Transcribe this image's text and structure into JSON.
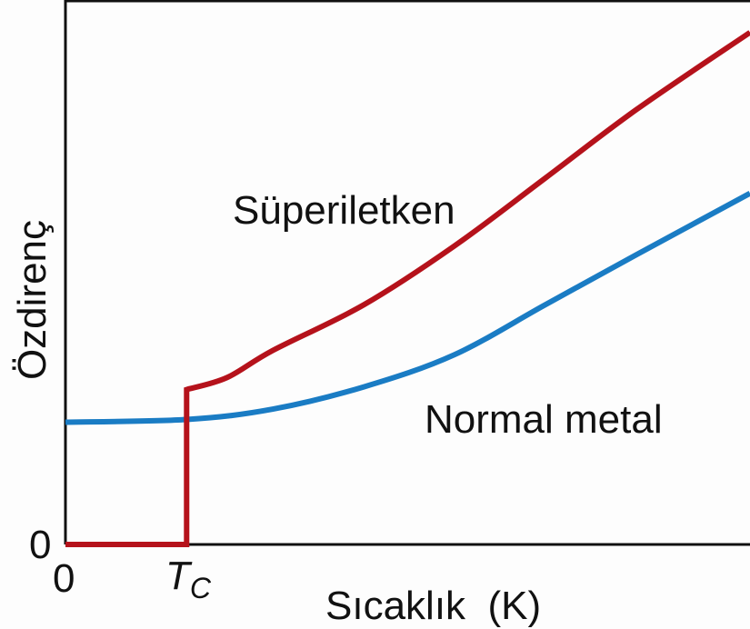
{
  "chart_data": {
    "type": "line",
    "title": "",
    "xlabel": "Sıcaklık  (K)",
    "ylabel": "Özdirenç",
    "xlim": [
      0,
      100
    ],
    "ylim": [
      0,
      100
    ],
    "x_ticks": [
      {
        "value": 0,
        "label": "0"
      },
      {
        "value": 17.7,
        "label": "T",
        "sub": "C"
      }
    ],
    "y_ticks": [
      {
        "value": 0,
        "label": "0"
      }
    ],
    "grid": false,
    "series": [
      {
        "name": "Süperiletken",
        "color": "#b5121b",
        "points": [
          [
            0,
            0
          ],
          [
            17.7,
            0
          ],
          [
            17.7,
            28.5
          ],
          [
            23.6,
            30.7
          ],
          [
            30.3,
            35.7
          ],
          [
            43.6,
            44.1
          ],
          [
            56.8,
            54.9
          ],
          [
            70.1,
            67.4
          ],
          [
            83.4,
            80
          ],
          [
            100,
            94.2
          ]
        ]
      },
      {
        "name": "Normal metal",
        "color": "#1a7cc4",
        "points": [
          [
            0,
            22.5
          ],
          [
            17.7,
            23.0
          ],
          [
            30.3,
            24.9
          ],
          [
            43.6,
            29.0
          ],
          [
            56.8,
            34.9
          ],
          [
            70.1,
            44.1
          ],
          [
            83.4,
            53.3
          ],
          [
            100,
            64.6
          ]
        ]
      }
    ]
  }
}
